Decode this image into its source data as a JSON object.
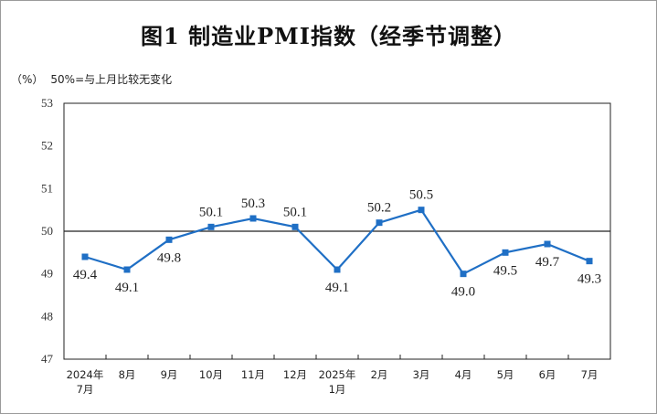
{
  "title": "图1  制造业PMI指数（经季节调整）",
  "unit_label": "（%）",
  "note": "50%=与上月比较无变化",
  "chart_data": {
    "type": "line",
    "title": "图1  制造业PMI指数（经季节调整）",
    "ylabel": "（%）",
    "ylim": [
      47,
      53
    ],
    "yticks": [
      "53",
      "52",
      "51",
      "50",
      "49",
      "48",
      "47"
    ],
    "reference_line": 50,
    "categories": [
      [
        "2024年",
        "7月"
      ],
      [
        "8月"
      ],
      [
        "9月"
      ],
      [
        "10月"
      ],
      [
        "11月"
      ],
      [
        "12月"
      ],
      [
        "2025年",
        "1月"
      ],
      [
        "2月"
      ],
      [
        "3月"
      ],
      [
        "4月"
      ],
      [
        "5月"
      ],
      [
        "6月"
      ],
      [
        "7月"
      ]
    ],
    "series": [
      {
        "values": [
          49.4,
          49.1,
          49.8,
          50.1,
          50.3,
          50.1,
          49.1,
          50.2,
          50.5,
          49.0,
          49.5,
          49.7,
          49.3
        ],
        "labels": [
          "49.4",
          "49.1",
          "49.8",
          "50.1",
          "50.3",
          "50.1",
          "49.1",
          "50.2",
          "50.5",
          "49.0",
          "49.5",
          "49.7",
          "49.3"
        ],
        "color": "#1f6fc5"
      }
    ],
    "grid": false
  }
}
